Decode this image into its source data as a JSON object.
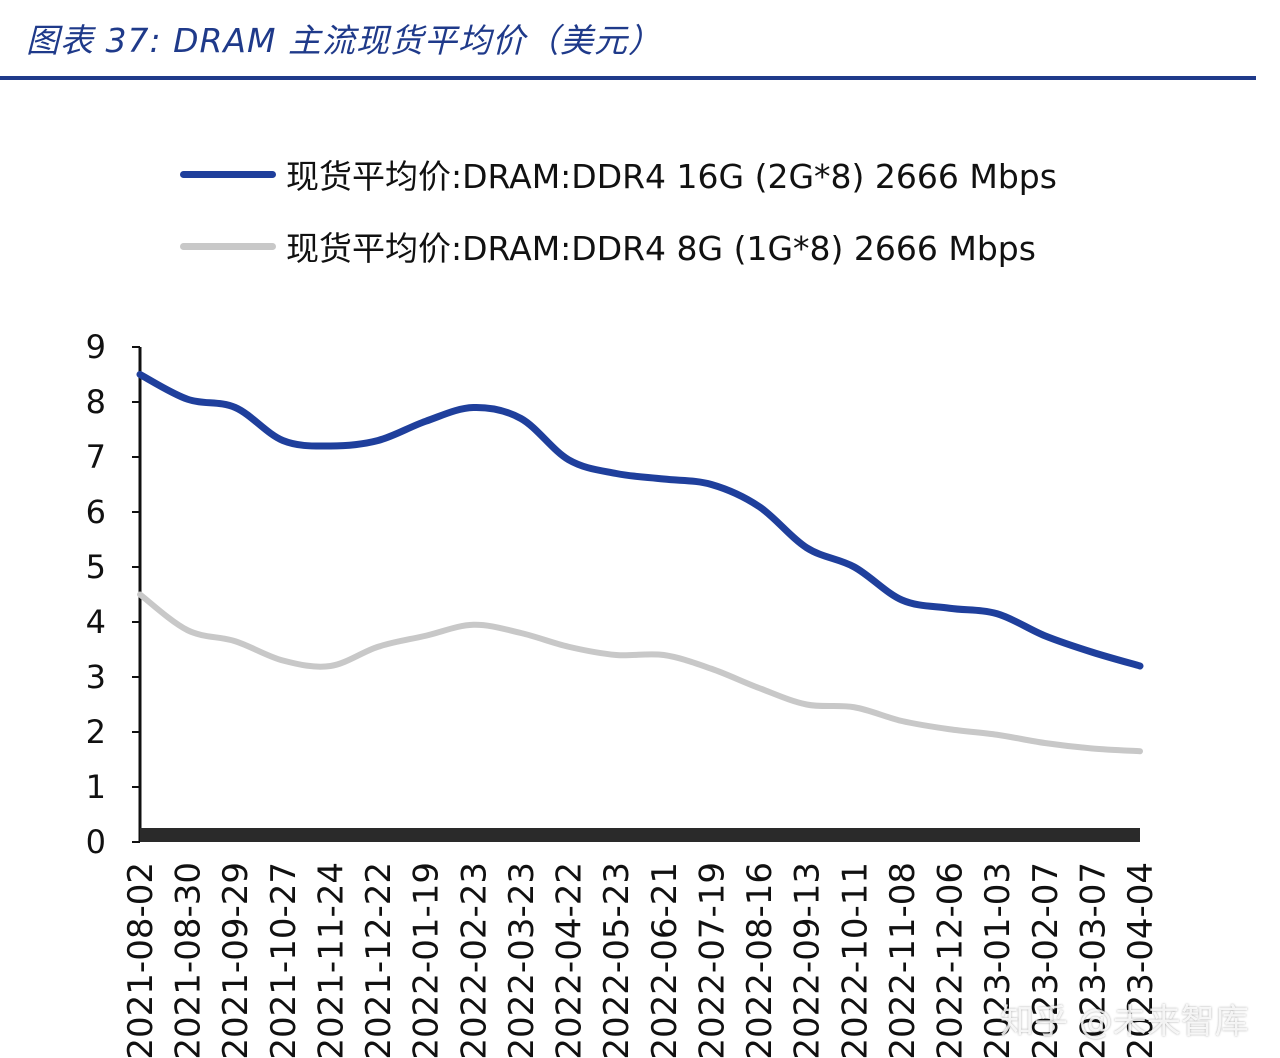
{
  "figure": {
    "title": "图表 37:  DRAM 主流现货平均价（美元）"
  },
  "watermark": "知乎 @未来智库",
  "chart_data": {
    "type": "line",
    "title": "",
    "xlabel": "",
    "ylabel": "",
    "ylim": [
      0,
      9
    ],
    "yticks": [
      0,
      1,
      2,
      3,
      4,
      5,
      6,
      7,
      8,
      9
    ],
    "grid": false,
    "legend_position": "top",
    "x": [
      "2021-08-02",
      "2021-08-30",
      "2021-09-29",
      "2021-10-27",
      "2021-11-24",
      "2021-12-22",
      "2022-01-19",
      "2022-02-23",
      "2022-03-23",
      "2022-04-22",
      "2022-05-23",
      "2022-06-21",
      "2022-07-19",
      "2022-08-16",
      "2022-09-13",
      "2022-10-11",
      "2022-11-08",
      "2022-12-06",
      "2023-01-03",
      "2023-02-07",
      "2023-03-07",
      "2023-04-04"
    ],
    "series": [
      {
        "name": "现货平均价:DRAM:DDR4 16G (2G*8) 2666 Mbps",
        "color": "#1f3f9c",
        "values": [
          8.5,
          8.05,
          7.9,
          7.3,
          7.2,
          7.3,
          7.65,
          7.9,
          7.7,
          6.95,
          6.7,
          6.6,
          6.5,
          6.1,
          5.35,
          5.0,
          4.4,
          4.25,
          4.15,
          3.75,
          3.45,
          3.2
        ]
      },
      {
        "name": "现货平均价:DRAM:DDR4 8G (1G*8) 2666 Mbps",
        "color": "#c8c8c8",
        "values": [
          4.5,
          3.85,
          3.65,
          3.3,
          3.2,
          3.55,
          3.75,
          3.95,
          3.8,
          3.55,
          3.4,
          3.4,
          3.15,
          2.8,
          2.5,
          2.45,
          2.2,
          2.05,
          1.95,
          1.8,
          1.7,
          1.65
        ]
      }
    ]
  }
}
